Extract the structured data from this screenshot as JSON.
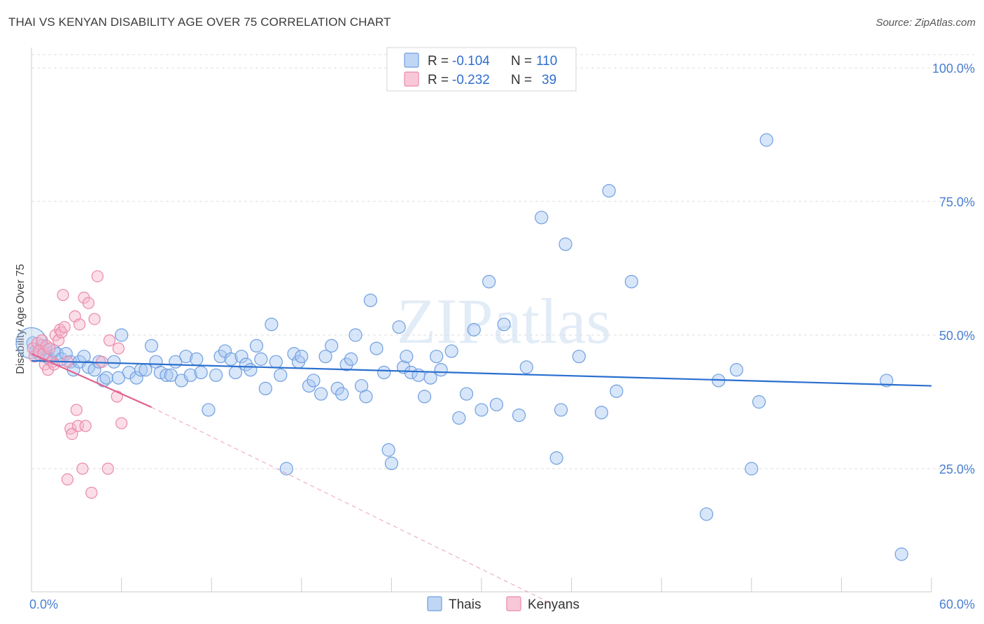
{
  "title": "THAI VS KENYAN DISABILITY AGE OVER 75 CORRELATION CHART",
  "source": "Source: ZipAtlas.com",
  "watermark": "ZIPatlas",
  "colors": {
    "thais_fill": "#a9c8f2",
    "thais_stroke": "#6f9fe0",
    "thais_line": "#2a6fcf",
    "kenyans_fill": "#f6b6cb",
    "kenyans_stroke": "#e98aaa",
    "kenyans_line": "#e0608f",
    "tick_color": "#4a7fd0",
    "grid": "#dddddd"
  },
  "legend": {
    "rows": [
      {
        "r_label": "R =",
        "r_value": "-0.104",
        "n_label": "N =",
        "n_value": "110",
        "series": "Thais"
      },
      {
        "r_label": "R =",
        "r_value": "-0.232",
        "n_label": "N =",
        "n_value": "39",
        "series": "Kenyans"
      }
    ]
  },
  "bottom_legend": [
    "Thais",
    "Kenyans"
  ],
  "chart_data": {
    "type": "scatter",
    "title": "THAI VS KENYAN DISABILITY AGE OVER 75 CORRELATION CHART",
    "xlabel": "",
    "ylabel": "Disability Age Over 75",
    "xlim": [
      0,
      60
    ],
    "ylim": [
      0,
      105
    ],
    "x_tick_labels": [
      "0.0%",
      "60.0%"
    ],
    "y_tick_labels": [
      "100.0%",
      "75.0%",
      "50.0%",
      "25.0%"
    ],
    "y_tick_values": [
      100,
      75,
      50,
      25
    ],
    "series": [
      {
        "name": "Thais",
        "r": -0.104,
        "n": 110,
        "trend": {
          "x": [
            0,
            60
          ],
          "y": [
            45.2,
            40.5
          ],
          "dashed_extension": false
        },
        "points": [
          [
            0.1,
            48.5
          ],
          [
            0.3,
            47.0
          ],
          [
            0.5,
            46.5
          ],
          [
            0.7,
            48.0
          ],
          [
            0.9,
            47.5
          ],
          [
            1.0,
            46.0
          ],
          [
            1.2,
            45.5
          ],
          [
            1.5,
            47.0
          ],
          [
            1.7,
            46.5
          ],
          [
            2.0,
            45.5
          ],
          [
            2.3,
            46.5
          ],
          [
            2.6,
            45.0
          ],
          [
            2.8,
            43.5
          ],
          [
            3.2,
            45.0
          ],
          [
            3.5,
            46.0
          ],
          [
            3.8,
            44.0
          ],
          [
            4.2,
            43.5
          ],
          [
            4.5,
            45.0
          ],
          [
            4.8,
            41.5
          ],
          [
            5.0,
            42.0
          ],
          [
            5.5,
            45.0
          ],
          [
            5.8,
            42.0
          ],
          [
            6.0,
            50.0
          ],
          [
            6.5,
            43.0
          ],
          [
            7.0,
            42.0
          ],
          [
            7.3,
            43.5
          ],
          [
            7.6,
            43.5
          ],
          [
            8.0,
            48.0
          ],
          [
            8.3,
            45.0
          ],
          [
            8.6,
            43.0
          ],
          [
            9.0,
            42.5
          ],
          [
            9.3,
            42.5
          ],
          [
            9.6,
            45.0
          ],
          [
            10.0,
            41.5
          ],
          [
            10.3,
            46.0
          ],
          [
            10.6,
            42.5
          ],
          [
            11.0,
            45.5
          ],
          [
            11.3,
            43.0
          ],
          [
            11.8,
            36.0
          ],
          [
            12.3,
            42.5
          ],
          [
            12.6,
            46.0
          ],
          [
            12.9,
            47.0
          ],
          [
            13.3,
            45.5
          ],
          [
            13.6,
            43.0
          ],
          [
            14.0,
            46.0
          ],
          [
            14.3,
            44.5
          ],
          [
            14.6,
            43.5
          ],
          [
            15.0,
            48.0
          ],
          [
            15.3,
            45.5
          ],
          [
            15.6,
            40.0
          ],
          [
            16.0,
            52.0
          ],
          [
            16.3,
            45.0
          ],
          [
            16.6,
            42.5
          ],
          [
            17.0,
            25.0
          ],
          [
            17.5,
            46.5
          ],
          [
            17.8,
            45.0
          ],
          [
            18.0,
            46.0
          ],
          [
            18.5,
            40.5
          ],
          [
            18.8,
            41.5
          ],
          [
            19.3,
            39.0
          ],
          [
            19.6,
            46.0
          ],
          [
            20.0,
            48.0
          ],
          [
            20.4,
            40.0
          ],
          [
            20.7,
            39.0
          ],
          [
            21.0,
            44.5
          ],
          [
            21.3,
            45.5
          ],
          [
            21.6,
            50.0
          ],
          [
            22.0,
            40.5
          ],
          [
            22.3,
            38.5
          ],
          [
            22.6,
            56.5
          ],
          [
            23.0,
            47.5
          ],
          [
            23.5,
            43.0
          ],
          [
            23.8,
            28.5
          ],
          [
            24.0,
            26.0
          ],
          [
            24.5,
            51.5
          ],
          [
            24.8,
            44.0
          ],
          [
            25.0,
            46.0
          ],
          [
            25.3,
            43.0
          ],
          [
            25.8,
            42.5
          ],
          [
            26.2,
            38.5
          ],
          [
            26.6,
            42.0
          ],
          [
            27.0,
            46.0
          ],
          [
            27.3,
            43.5
          ],
          [
            28.0,
            47.0
          ],
          [
            28.5,
            34.5
          ],
          [
            29.0,
            39.0
          ],
          [
            29.5,
            51.0
          ],
          [
            30.0,
            36.0
          ],
          [
            30.5,
            60.0
          ],
          [
            31.0,
            37.0
          ],
          [
            31.5,
            52.0
          ],
          [
            32.5,
            35.0
          ],
          [
            33.0,
            44.0
          ],
          [
            34.0,
            72.0
          ],
          [
            35.0,
            27.0
          ],
          [
            35.3,
            36.0
          ],
          [
            35.6,
            67.0
          ],
          [
            36.5,
            46.0
          ],
          [
            38.0,
            35.5
          ],
          [
            38.5,
            77.0
          ],
          [
            39.0,
            39.5
          ],
          [
            40.0,
            60.0
          ],
          [
            45.0,
            16.5
          ],
          [
            45.8,
            41.5
          ],
          [
            47.0,
            43.5
          ],
          [
            48.0,
            25.0
          ],
          [
            48.5,
            37.5
          ],
          [
            49.0,
            86.5
          ],
          [
            57.0,
            41.5
          ],
          [
            58.0,
            9.0
          ]
        ]
      },
      {
        "name": "Kenyans",
        "r": -0.232,
        "n": 39,
        "trend": {
          "x": [
            0,
            8
          ],
          "y": [
            46.5,
            36.5
          ],
          "dashed_extension": {
            "x": [
              8,
              34.5
            ],
            "y": [
              36.5,
              0
            ]
          }
        },
        "points": [
          [
            0.1,
            47.5
          ],
          [
            0.2,
            46.0
          ],
          [
            0.4,
            48.5
          ],
          [
            0.5,
            47.0
          ],
          [
            0.7,
            49.0
          ],
          [
            0.8,
            46.5
          ],
          [
            0.9,
            44.5
          ],
          [
            1.0,
            48.0
          ],
          [
            1.1,
            43.5
          ],
          [
            1.2,
            47.5
          ],
          [
            1.4,
            45.0
          ],
          [
            1.5,
            44.5
          ],
          [
            1.6,
            50.0
          ],
          [
            1.8,
            49.0
          ],
          [
            1.9,
            51.0
          ],
          [
            2.0,
            50.5
          ],
          [
            2.1,
            57.5
          ],
          [
            2.2,
            51.5
          ],
          [
            2.4,
            45.0
          ],
          [
            2.6,
            32.5
          ],
          [
            2.7,
            31.5
          ],
          [
            2.9,
            53.5
          ],
          [
            3.0,
            36.0
          ],
          [
            3.1,
            33.0
          ],
          [
            3.2,
            52.0
          ],
          [
            3.4,
            25.0
          ],
          [
            3.5,
            57.0
          ],
          [
            3.6,
            33.0
          ],
          [
            3.8,
            56.0
          ],
          [
            4.0,
            20.5
          ],
          [
            4.2,
            53.0
          ],
          [
            4.4,
            61.0
          ],
          [
            4.7,
            45.0
          ],
          [
            5.1,
            25.0
          ],
          [
            5.2,
            49.0
          ],
          [
            5.7,
            38.5
          ],
          [
            5.8,
            47.5
          ],
          [
            6.0,
            33.5
          ],
          [
            2.4,
            23.0
          ]
        ]
      }
    ]
  }
}
